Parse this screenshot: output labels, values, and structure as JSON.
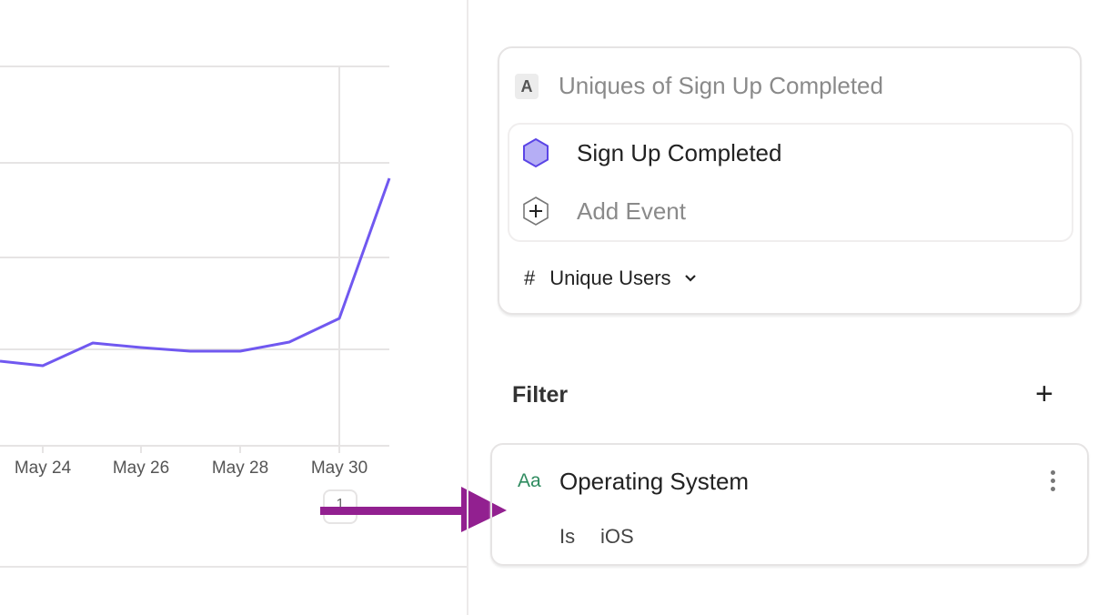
{
  "chart_data": {
    "type": "line",
    "x_tick_labels": [
      "May 24",
      "May 26",
      "May 28",
      "May 30"
    ],
    "line_color": "#7058f0",
    "grid": true
  },
  "pagination": {
    "page": "1"
  },
  "metric_card": {
    "letter": "A",
    "title": "Uniques of Sign Up Completed",
    "event": "Sign Up Completed",
    "add_event": "Add Event",
    "measure_symbol": "#",
    "measure": "Unique Users"
  },
  "filter": {
    "label": "Filter",
    "add": "+",
    "type_icon": "Aa",
    "property": "Operating System",
    "operator": "Is",
    "value": "iOS"
  },
  "colors": {
    "accent": "#7058f0",
    "annotation_arrow": "#922090",
    "string_type": "#2e8b5f"
  }
}
